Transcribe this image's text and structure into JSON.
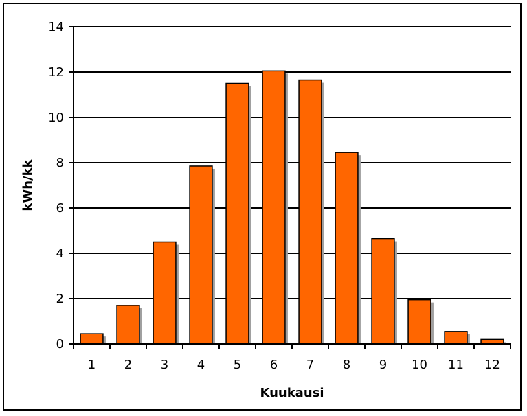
{
  "chart_data": {
    "type": "bar",
    "categories": [
      "1",
      "2",
      "3",
      "4",
      "5",
      "6",
      "7",
      "8",
      "9",
      "10",
      "11",
      "12"
    ],
    "values": [
      0.45,
      1.7,
      4.5,
      7.85,
      11.5,
      12.05,
      11.65,
      8.45,
      4.65,
      1.95,
      0.55,
      0.2
    ],
    "title": "",
    "xlabel": "Kuukausi",
    "ylabel": "kWh/kk",
    "ylim": [
      0,
      14
    ],
    "yticks": [
      "0",
      "2",
      "4",
      "6",
      "8",
      "10",
      "12",
      "14"
    ],
    "grid": true,
    "legend": "none",
    "bar_color": "#FF6600",
    "bar_shadow_color": "#A0A0A0"
  }
}
